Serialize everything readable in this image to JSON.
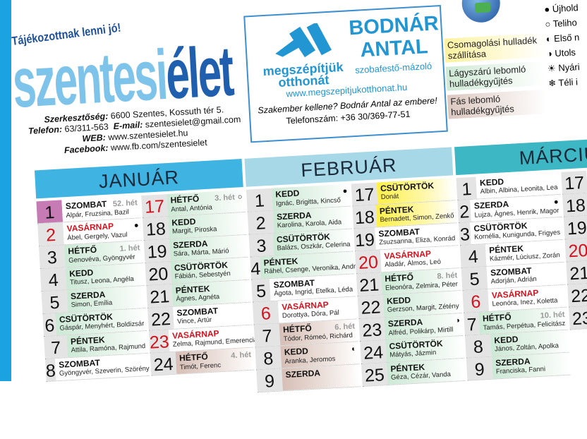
{
  "header": {
    "tagline": "Tájékozottnak lenni jó!",
    "logo_a": "szentesi",
    "logo_b": "élet",
    "contact": [
      {
        "label": "Szerkesztőség:",
        "value": "6600 Szentes, Kossuth tér 5."
      },
      {
        "label": "Telefon:",
        "value": "63/311-563",
        "label2": "E-mail:",
        "value2": "szentesielet@gmail.com"
      },
      {
        "label": "WEB:",
        "value": "www.szentesielet.hu"
      },
      {
        "label": "Facebook:",
        "value": "www.fb.com/szentesielet"
      }
    ]
  },
  "ad": {
    "slogan": "megszépítjük otthonát",
    "name": "BODNÁR ANTAL",
    "trade": "szobafestő-mázoló",
    "web": "www.megszepitjukotthonat.hu",
    "quote": "Szakember kellene? Bodnár Antal az embere!",
    "phone": "Telefonszám: +36 30/369-77-51",
    "color": "#2196d3"
  },
  "waste_legend": [
    {
      "label": "Csomagolási hulladék szállítása",
      "color": "#fff2a0"
    },
    {
      "label": "Lágyszárú lebomló hulladékgyűjtés",
      "color": "#cfead6"
    },
    {
      "label": "Fás lebomló hulladékgyűjtés",
      "color": "#dcc8c0"
    }
  ],
  "moon_legend": [
    {
      "icon": "●",
      "label": "Újhold"
    },
    {
      "icon": "○",
      "label": "Teliho"
    },
    {
      "icon": "◐",
      "label": "Első n"
    },
    {
      "icon": "◑",
      "label": "Utols"
    },
    {
      "icon": "☀",
      "label": "Nyári"
    },
    {
      "icon": "❄",
      "label": "Téli i"
    }
  ],
  "months": [
    {
      "name": "JANUÁR",
      "color": "#3fb4e2",
      "left": [
        {
          "day": "1",
          "dayname": "SZOMBAT",
          "names": "Alpár, Fruzsina, Bazil",
          "week": "52. hét",
          "hl": "pink"
        },
        {
          "day": "2",
          "dayname": "VASÁRNAP",
          "names": "Ábel, Gergely, Vazul",
          "moon": "●",
          "red": true
        },
        {
          "day": "3",
          "dayname": "HÉTFŐ",
          "names": "Genovéva, Gyöngyvér",
          "week": "1. hét",
          "hl": "green"
        },
        {
          "day": "4",
          "dayname": "KEDD",
          "names": "Titusz, Leona, Angéla",
          "hl": "green"
        },
        {
          "day": "5",
          "dayname": "SZERDA",
          "names": "Simon, Emília",
          "hl": "green"
        },
        {
          "day": "6",
          "dayname": "CSÜTÖRTÖK",
          "names": "Gáspár, Menyhért, Boldizsár",
          "hl": "green"
        },
        {
          "day": "7",
          "dayname": "PÉNTEK",
          "names": "Attila, Ramóna, Rajmund",
          "hl": "green"
        },
        {
          "day": "8",
          "dayname": "SZOMBAT",
          "names": "Gyöngyvér, Szeverin, Szörény"
        }
      ],
      "right": [
        {
          "day": "17",
          "dayname": "HÉTFŐ",
          "names": "Antal, Antónia",
          "week": "3. hét",
          "moon": "○",
          "hl": "green",
          "rednum": true
        },
        {
          "day": "18",
          "dayname": "KEDD",
          "names": "Margit, Piroska",
          "hl": "green"
        },
        {
          "day": "19",
          "dayname": "SZERDA",
          "names": "Sára, Márta, Márió",
          "hl": "green"
        },
        {
          "day": "20",
          "dayname": "CSÜTÖRTÖK",
          "names": "Fábián, Sebestyén",
          "hl": "green"
        },
        {
          "day": "21",
          "dayname": "PÉNTEK",
          "names": "Ágnes, Agnéta",
          "hl": "green"
        },
        {
          "day": "22",
          "dayname": "SZOMBAT",
          "names": "Vince, Artúr"
        },
        {
          "day": "23",
          "dayname": "VASÁRNAP",
          "names": "Zelma, Rajmund, Emerencia",
          "red": true
        },
        {
          "day": "24",
          "dayname": "HÉTFŐ",
          "names": "Timót, Ferenc",
          "week": "4. hét",
          "hl": "brown"
        }
      ]
    },
    {
      "name": "FEBRUÁR",
      "color": "#a7d8e8",
      "left": [
        {
          "day": "1",
          "dayname": "KEDD",
          "names": "Ignác, Brigitta, Kincső",
          "moon": "●",
          "hl": "green"
        },
        {
          "day": "2",
          "dayname": "SZERDA",
          "names": "Karolina, Karola, Aida",
          "hl": "green"
        },
        {
          "day": "3",
          "dayname": "CSÜTÖRTÖK",
          "names": "Balázs, Oszkár, Celerina",
          "hl": "green"
        },
        {
          "day": "4",
          "dayname": "PÉNTEK",
          "names": "Ráhel, Csenge, Veronika, András",
          "hl": "green"
        },
        {
          "day": "5",
          "dayname": "SZOMBAT",
          "names": "Ágota, Ingrid, Etelka, Léda"
        },
        {
          "day": "6",
          "dayname": "VASÁRNAP",
          "names": "Dorottya, Dóra, Pál",
          "red": true
        },
        {
          "day": "7",
          "dayname": "HÉTFŐ",
          "names": "Tódor, Rómeó, Richárd",
          "week": "6. hét",
          "hl": "brown"
        },
        {
          "day": "8",
          "dayname": "KEDD",
          "names": "Aranka, Jeromos",
          "moon": "◐",
          "hl": "brown"
        },
        {
          "day": "9",
          "dayname": "SZERDA",
          "names": "",
          "hl": "brown"
        }
      ],
      "right": [
        {
          "day": "17",
          "dayname": "CSÜTÖRTÖK",
          "names": "Donát",
          "hl": "yellow"
        },
        {
          "day": "18",
          "dayname": "PÉNTEK",
          "names": "Bernadett, Simon, Zenkő",
          "hl": "yellow"
        },
        {
          "day": "19",
          "dayname": "SZOMBAT",
          "names": "Zsuzsanna, Eliza, Konrád"
        },
        {
          "day": "20",
          "dayname": "VASÁRNAP",
          "names": "Aladár, Álmos, Leó",
          "red": true
        },
        {
          "day": "21",
          "dayname": "HÉTFŐ",
          "names": "Eleonóra, Zelmira, Péter",
          "week": "8. hét",
          "hl": "green"
        },
        {
          "day": "22",
          "dayname": "KEDD",
          "names": "Gerzson, Margit, Zétény",
          "hl": "green"
        },
        {
          "day": "23",
          "dayname": "SZERDA",
          "names": "Alfréd, Polikárp, Mirtill",
          "moon": "◑",
          "hl": "green"
        },
        {
          "day": "24",
          "dayname": "CSÜTÖRTÖK",
          "names": "Mátyás, Jázmin",
          "hl": "green"
        },
        {
          "day": "25",
          "dayname": "PÉNTEK",
          "names": "Géza, Cézár, Vanda",
          "hl": "green"
        }
      ]
    },
    {
      "name": "MÁRCIU",
      "color": "#3db7c4",
      "left": [
        {
          "day": "1",
          "dayname": "KEDD",
          "names": "Albin, Albina, Leonita, Lea"
        },
        {
          "day": "2",
          "dayname": "SZERDA",
          "names": "Lujza, Ágnes, Henrik, Magor",
          "moon": "●"
        },
        {
          "day": "3",
          "dayname": "CSÜTÖRTÖK",
          "names": "Kornélia, Kunigunda, Frigyes"
        },
        {
          "day": "4",
          "dayname": "PÉNTEK",
          "names": "Kázmér, Lúciusz, Zorán"
        },
        {
          "day": "5",
          "dayname": "SZOMBAT",
          "names": "Adorján, Adrián"
        },
        {
          "day": "6",
          "dayname": "VASÁRNAP",
          "names": "Leonóra, Inez, Koletta",
          "red": true
        },
        {
          "day": "7",
          "dayname": "HÉTFŐ",
          "names": "Tamás, Perpétua, Felicitász",
          "week": "10. hét",
          "hl": "green"
        },
        {
          "day": "8",
          "dayname": "KEDD",
          "names": "János, Zoltán, Apolka",
          "hl": "green"
        },
        {
          "day": "9",
          "dayname": "SZERDA",
          "names": "Franciska, Fanni",
          "hl": "green"
        }
      ],
      "right": [
        {
          "day": "17"
        },
        {
          "day": "18"
        },
        {
          "day": "19"
        },
        {
          "day": "20",
          "red": true
        },
        {
          "day": "21"
        },
        {
          "day": "22"
        },
        {
          "day": "23"
        }
      ]
    }
  ]
}
